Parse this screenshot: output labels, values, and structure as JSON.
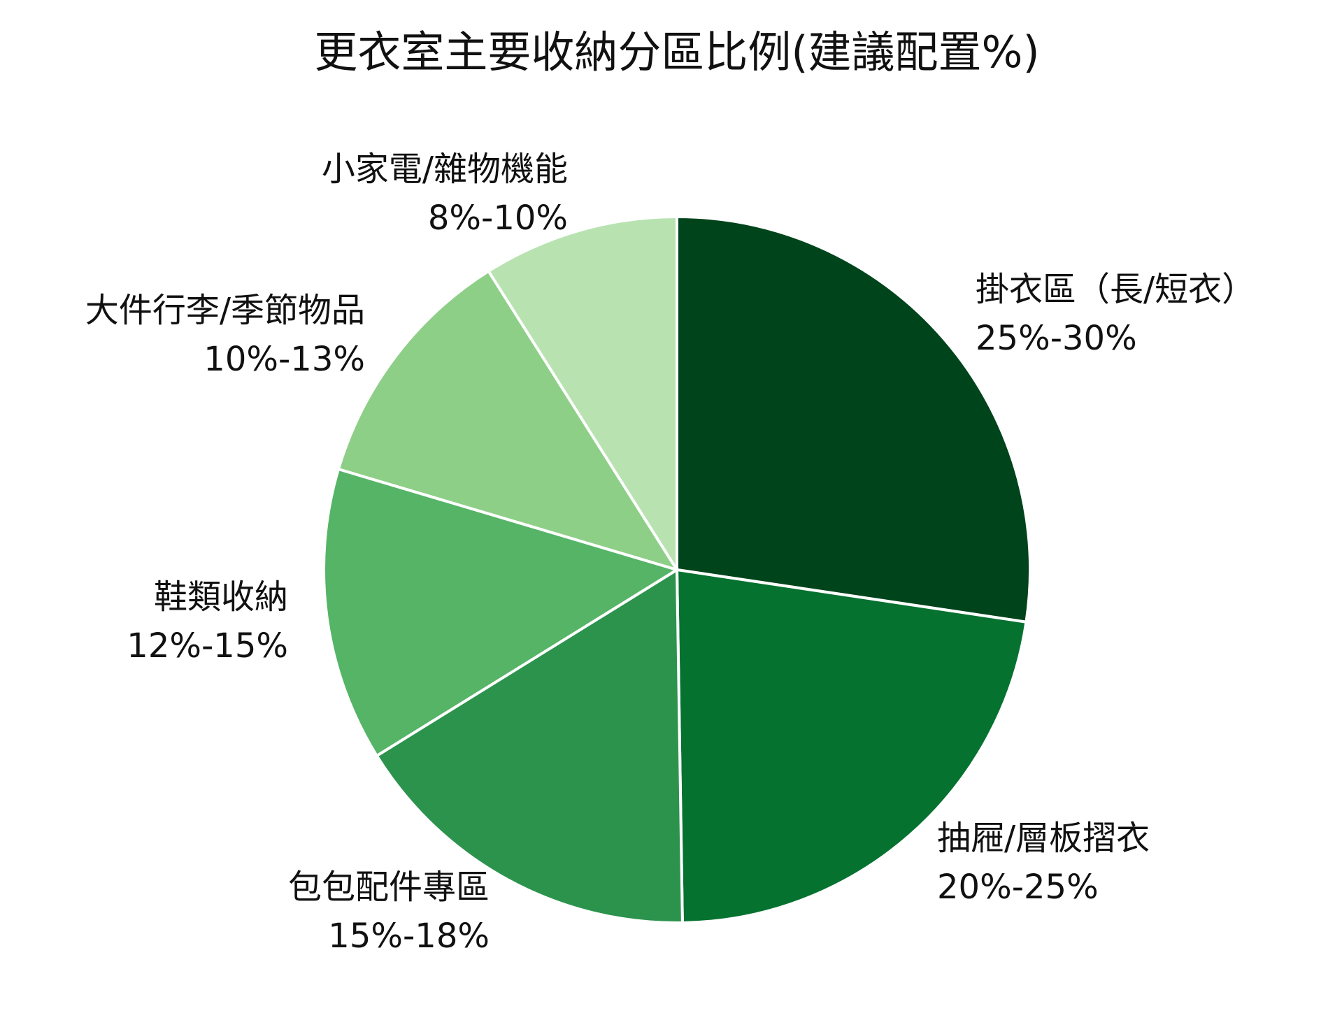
{
  "chart_data": {
    "type": "pie",
    "title": "更衣室主要收納分區比例(建議配置%)",
    "start_angle_deg": 0,
    "direction": "clockwise",
    "slices": [
      {
        "label": "掛衣區（長/短衣）",
        "range_text": "25%-30%",
        "value": 27.5,
        "color": "#00441b"
      },
      {
        "label": "抽屜/層板摺衣",
        "range_text": "20%-25%",
        "value": 22.5,
        "color": "#067230"
      },
      {
        "label": "包包配件專區",
        "range_text": "15%-18%",
        "value": 16.5,
        "color": "#2c934d"
      },
      {
        "label": "鞋類收納",
        "range_text": "12%-15%",
        "value": 13.5,
        "color": "#55b466"
      },
      {
        "label": "大件行李/季節物品",
        "range_text": "10%-13%",
        "value": 11.5,
        "color": "#8ecf88"
      },
      {
        "label": "小家電/雜物機能",
        "range_text": "8%-10%",
        "value": 9.0,
        "color": "#b8e3b1"
      }
    ]
  }
}
